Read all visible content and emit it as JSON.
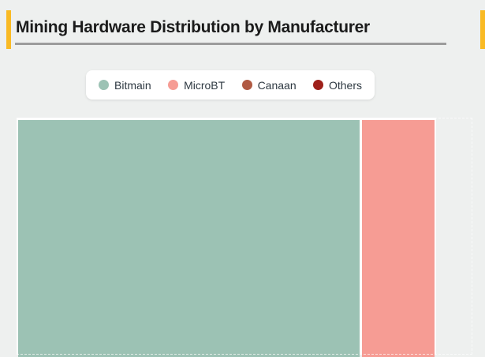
{
  "page": {
    "background": "#EEF0EF",
    "accent_color": "#F9BA24",
    "title_color": "#1B1B1B",
    "underline_color": "#9C9C9C",
    "legend_text_color": "#2E3942"
  },
  "header": {
    "title": "Mining Hardware Distribution by Manufacturer"
  },
  "legend": {
    "items": [
      {
        "label": "Bitmain",
        "color": "#9CC2B4"
      },
      {
        "label": "MicroBT",
        "color": "#F69C94"
      },
      {
        "label": "Canaan",
        "color": "#B05A43"
      },
      {
        "label": "Others",
        "color": "#9E201A"
      }
    ]
  },
  "chart_data": {
    "type": "treemap",
    "title": "Mining Hardware Distribution by Manufacturer",
    "categories": [
      "Bitmain",
      "MicroBT",
      "Canaan",
      "Others"
    ],
    "values_pct_estimated": [
      75,
      16,
      6,
      3
    ],
    "colors": [
      "#9CC2B4",
      "#F69C94",
      "#B05A43",
      "#9E201A"
    ],
    "legend_position": "top",
    "visible_tiles": [
      "Bitmain",
      "MicroBT"
    ],
    "cropped": "chart cut off at bottom edge; Canaan and Others tiles not visible"
  }
}
